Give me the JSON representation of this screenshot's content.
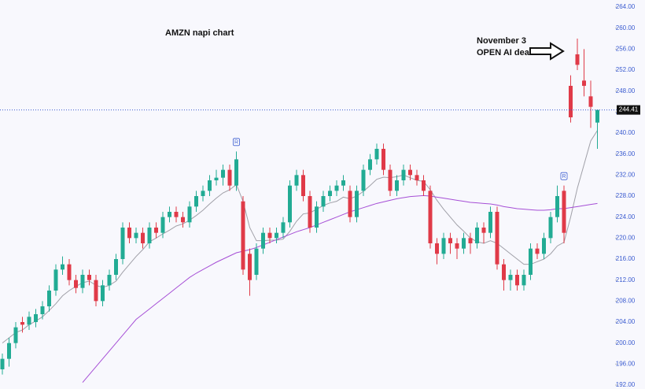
{
  "chart_data": {
    "type": "candlestick",
    "title": "AMZN napi chart",
    "annotation": [
      "November 3",
      "OPEN AI deal"
    ],
    "markers": [
      "R",
      "R"
    ],
    "up_color": "#22ab94",
    "down_color": "#e03a48",
    "ylim": [
      192,
      264
    ],
    "yticks": [
      {
        "value": 192,
        "label": "192.00"
      },
      {
        "value": 196,
        "label": "196.00"
      },
      {
        "value": 200,
        "label": "200.00"
      },
      {
        "value": 204,
        "label": "204.00"
      },
      {
        "value": 208,
        "label": "208.00"
      },
      {
        "value": 212,
        "label": "212.00"
      },
      {
        "value": 216,
        "label": "216.00"
      },
      {
        "value": 220,
        "label": "220.00"
      },
      {
        "value": 224,
        "label": "224.00"
      },
      {
        "value": 228,
        "label": "228.00"
      },
      {
        "value": 232,
        "label": "232.00"
      },
      {
        "value": 236,
        "label": "236.00"
      },
      {
        "value": 240,
        "label": "240.00"
      },
      {
        "value": 244,
        "label": "244.00"
      },
      {
        "value": 248,
        "label": "248.00"
      },
      {
        "value": 252,
        "label": "252.00"
      },
      {
        "value": 256,
        "label": "256.00"
      },
      {
        "value": 260,
        "label": "260.00"
      },
      {
        "value": 264,
        "label": "264.00"
      }
    ],
    "open": [
      195,
      197,
      200,
      204,
      203.5,
      204,
      205.5,
      207,
      210,
      214,
      215,
      212,
      210.5,
      213,
      212,
      208,
      211,
      213,
      216,
      222,
      220,
      221,
      219,
      222,
      221,
      224,
      225,
      224,
      223,
      226,
      228,
      229,
      231,
      231.5,
      233,
      230,
      227,
      217,
      213,
      218,
      221,
      220,
      221,
      223,
      230,
      232,
      228,
      222,
      226,
      228,
      229,
      230,
      229,
      224,
      229,
      233,
      235,
      237,
      233,
      229,
      231,
      233,
      232,
      231,
      229,
      219,
      217,
      220,
      219,
      218,
      220,
      219,
      222,
      221,
      225,
      215,
      212,
      213,
      211,
      213,
      218,
      217,
      220,
      224,
      229,
      249,
      255,
      250,
      247,
      242
    ],
    "high": [
      198,
      201,
      204,
      205,
      206,
      206.5,
      208,
      211,
      215,
      216.5,
      216,
      213,
      214,
      214,
      213,
      212,
      214,
      217,
      223,
      223,
      222,
      222,
      223,
      223,
      225,
      226,
      226,
      225,
      227,
      229,
      230,
      232,
      233,
      234,
      234,
      236.5,
      228,
      218,
      219,
      222,
      222,
      222,
      224,
      231,
      233,
      233,
      229,
      227,
      229,
      230,
      231,
      232,
      230,
      230,
      234,
      236,
      238,
      238,
      234,
      232,
      234,
      234,
      233,
      232,
      230,
      220,
      221,
      221,
      220,
      221,
      221,
      223,
      223,
      226,
      226,
      216,
      214,
      214,
      214,
      219,
      219,
      221,
      225,
      230,
      230,
      251,
      258,
      256,
      250,
      244.5
    ],
    "low": [
      194,
      195.5,
      199,
      202,
      202.5,
      203,
      204.5,
      206,
      209,
      213,
      211,
      209.5,
      209.5,
      211,
      207,
      207,
      210,
      212,
      215,
      219,
      219,
      218,
      218,
      220,
      220,
      223,
      223,
      222,
      222,
      225,
      227,
      228,
      230,
      230,
      229,
      229,
      213,
      209,
      212,
      217,
      219,
      219,
      220,
      222,
      229,
      227,
      221,
      221,
      225,
      227,
      228,
      229,
      223,
      223,
      228,
      232,
      234,
      232,
      228,
      228,
      230,
      231,
      230,
      228,
      218,
      215,
      216,
      217,
      216,
      217,
      217,
      218,
      219,
      220,
      214,
      210,
      210,
      210,
      210,
      212,
      216,
      216,
      219,
      223,
      219,
      242,
      252,
      247,
      241,
      237
    ],
    "close": [
      197,
      200,
      203,
      203.5,
      205,
      205.5,
      207,
      210,
      214,
      215,
      212,
      210.5,
      213,
      212,
      208,
      211,
      213,
      216,
      222,
      220,
      221,
      219,
      222,
      221,
      224,
      225,
      224,
      223,
      226,
      228,
      229,
      231,
      231.5,
      233,
      230,
      235,
      214,
      212,
      218,
      221,
      220,
      221,
      223,
      230,
      232,
      228,
      222,
      226,
      228,
      229,
      230,
      231,
      224,
      229,
      233,
      235,
      237,
      233,
      229,
      231,
      233,
      232,
      231,
      229,
      219,
      217,
      220,
      219,
      218,
      220,
      219,
      222,
      221,
      225,
      215,
      212,
      213,
      211,
      213,
      218,
      217,
      220,
      224,
      228,
      221,
      243,
      253,
      249,
      245,
      244.41
    ],
    "ma_lines": [
      {
        "color": "#a0a0a8",
        "values": [
          200,
          201,
          202,
          202.5,
          203.5,
          204.2,
          205,
          206.2,
          207.5,
          209,
          210,
          210.8,
          211.5,
          211.8,
          211,
          210.6,
          211,
          211.8,
          213.5,
          215,
          216.5,
          217.8,
          219.3,
          220,
          220.8,
          221.5,
          222.3,
          222.7,
          223.4,
          224.3,
          225.3,
          226.5,
          227.6,
          228.6,
          229.2,
          230.2,
          227,
          222,
          219.5,
          219.5,
          219.6,
          219.6,
          219.8,
          221.3,
          223.2,
          224.6,
          224.8,
          225.5,
          226.2,
          226.7,
          227,
          227.8,
          227.5,
          228,
          228.9,
          230,
          231.2,
          231.6,
          231.5,
          231.7,
          232,
          231.5,
          231,
          230.8,
          229.2,
          227.2,
          225.5,
          224,
          222.5,
          221.3,
          220,
          219.3,
          219,
          219.5,
          219,
          218,
          217,
          216,
          215,
          215,
          215.5,
          216,
          217,
          218.5,
          219.2,
          224,
          229.5,
          234,
          238.5,
          240.5
        ]
      },
      {
        "color": "#a64fd6",
        "values": [
          null,
          null,
          null,
          null,
          null,
          null,
          null,
          null,
          null,
          null,
          null,
          null,
          192.5,
          194,
          195.5,
          197,
          198.5,
          200,
          201.5,
          203,
          204.5,
          205.5,
          206.5,
          207.5,
          208.5,
          209.5,
          210.5,
          211.5,
          212.5,
          213.3,
          214,
          214.7,
          215.4,
          216,
          216.6,
          217.2,
          217.5,
          217.8,
          218.2,
          218.7,
          219.2,
          219.7,
          220.2,
          220.7,
          221.2,
          221.6,
          222,
          222.5,
          223,
          223.5,
          224,
          224.5,
          225,
          225.4,
          225.8,
          226.2,
          226.6,
          226.9,
          227.2,
          227.5,
          227.7,
          227.9,
          228,
          228.1,
          228,
          227.8,
          227.6,
          227.4,
          227.2,
          227,
          226.8,
          226.7,
          226.6,
          226.5,
          226.3,
          226,
          225.8,
          225.6,
          225.5,
          225.4,
          225.3,
          225.3,
          225.4,
          225.6,
          225.6,
          225.8,
          226,
          226.2,
          226.4,
          226.6
        ]
      }
    ],
    "last_price_line": true
  }
}
